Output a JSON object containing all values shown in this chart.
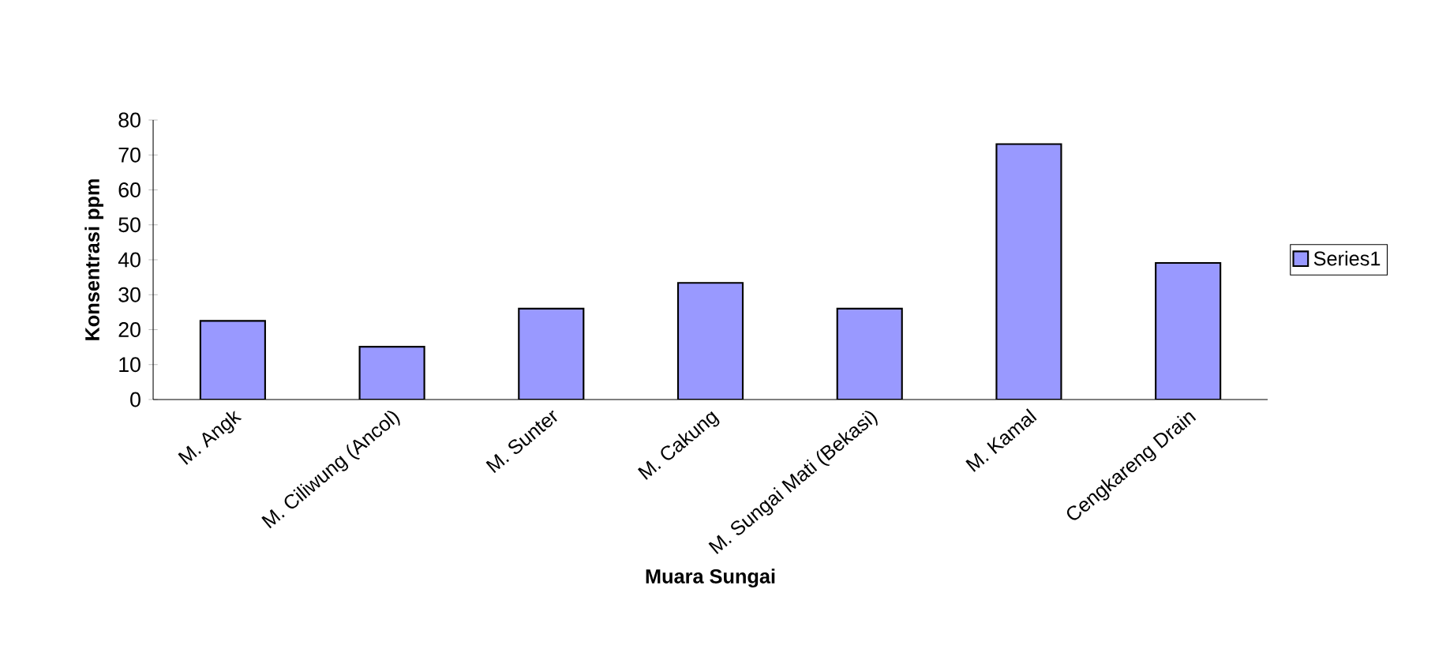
{
  "chart_data": {
    "type": "bar",
    "xlabel": "Muara Sungai",
    "ylabel": "Konsentrasi ppm",
    "categories": [
      "M. Angk",
      "M. Ciliwung (Ancol)",
      "M. Sunter",
      "M. Cakung",
      "M. Sungai Mati (Bekasi)",
      "M. Kamal",
      "Cengkareng Drain"
    ],
    "series": [
      {
        "name": "Series1",
        "color": "#9999ff",
        "values": [
          22.5,
          15.1,
          26.0,
          33.4,
          26.0,
          73.1,
          39.1
        ]
      }
    ],
    "ylim": [
      0,
      80
    ],
    "yticks": [
      0,
      10,
      20,
      30,
      40,
      50,
      60,
      70,
      80
    ],
    "legend": "right",
    "grid": false
  }
}
